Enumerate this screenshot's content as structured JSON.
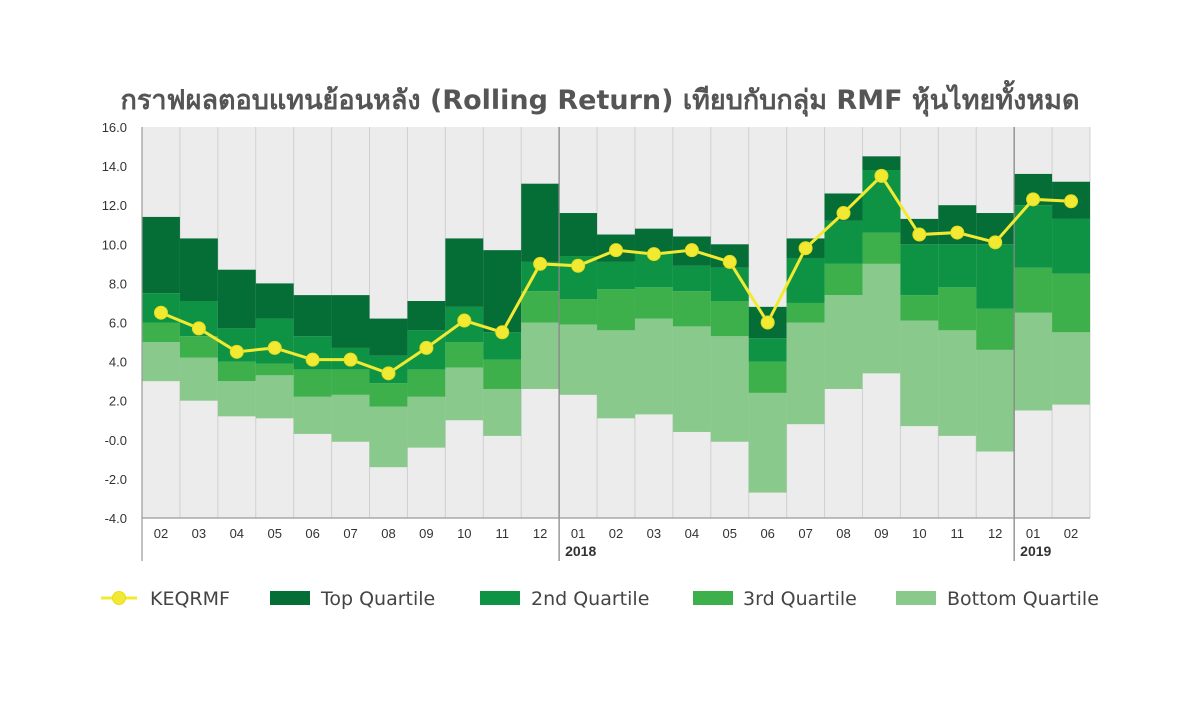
{
  "chart_data": {
    "type": "bar",
    "title": "กราฟผลตอบแทนย้อนหลัง (Rolling Return) เทียบกับกลุ่ม RMF หุ้นไทยทั้งหมด",
    "ylim": [
      -4.0,
      16.0
    ],
    "yticks": [
      "16.0",
      "14.0",
      "12.0",
      "10.0",
      "8.0",
      "6.0",
      "4.0",
      "2.0",
      "-0.0",
      "-2.0",
      "-4.0"
    ],
    "yticks_values": [
      16,
      14,
      12,
      10,
      8,
      6,
      4,
      2,
      0,
      -2,
      -4
    ],
    "categories": [
      "02",
      "03",
      "04",
      "05",
      "06",
      "07",
      "08",
      "09",
      "10",
      "11",
      "12",
      "01",
      "02",
      "03",
      "04",
      "05",
      "06",
      "07",
      "08",
      "09",
      "10",
      "11",
      "12",
      "01",
      "02"
    ],
    "year_labels": [
      {
        "index": 11,
        "label": "2018"
      },
      {
        "index": 23,
        "label": "2019"
      }
    ],
    "grid": "vertical",
    "legend_position": "bottom",
    "band_boundaries": {
      "bottom": [
        3.0,
        2.0,
        1.2,
        1.1,
        0.3,
        -0.1,
        -1.4,
        -0.4,
        1.0,
        0.2,
        2.6,
        2.3,
        1.1,
        1.3,
        0.4,
        -0.1,
        -2.7,
        0.8,
        2.6,
        3.4,
        0.7,
        0.2,
        -0.6,
        1.5,
        1.8
      ],
      "q3_start": [
        5.0,
        4.2,
        3.0,
        3.3,
        2.2,
        2.3,
        1.7,
        2.2,
        3.7,
        2.6,
        6.0,
        5.9,
        5.6,
        6.2,
        5.8,
        5.3,
        2.4,
        6.0,
        7.4,
        9.0,
        6.1,
        5.6,
        4.6,
        6.5,
        5.5
      ],
      "q2_start": [
        6.0,
        5.3,
        4.0,
        3.9,
        3.6,
        3.6,
        2.9,
        3.6,
        5.0,
        4.1,
        7.6,
        7.2,
        7.7,
        7.8,
        7.6,
        7.1,
        4.0,
        7.0,
        9.0,
        10.6,
        7.4,
        7.8,
        6.7,
        8.8,
        8.5
      ],
      "top_start": [
        7.5,
        7.1,
        5.7,
        6.2,
        5.3,
        4.7,
        4.3,
        5.6,
        6.8,
        5.5,
        9.1,
        9.4,
        9.1,
        9.6,
        8.9,
        8.8,
        5.2,
        9.3,
        11.2,
        13.8,
        10.0,
        10.0,
        10.0,
        12.0,
        11.3
      ],
      "top_end": [
        11.4,
        10.3,
        8.7,
        8.0,
        7.4,
        7.4,
        6.2,
        7.1,
        10.3,
        9.7,
        13.1,
        11.6,
        10.5,
        10.8,
        10.4,
        10.0,
        6.8,
        10.3,
        12.6,
        14.5,
        11.3,
        12.0,
        11.6,
        13.6,
        13.2
      ]
    },
    "series": [
      {
        "name": "KEQRMF",
        "values": [
          6.5,
          5.7,
          4.5,
          4.7,
          4.1,
          4.1,
          3.4,
          4.7,
          6.1,
          5.5,
          9.0,
          8.9,
          9.7,
          9.5,
          9.7,
          9.1,
          6.0,
          9.8,
          11.6,
          13.5,
          10.5,
          10.6,
          10.1,
          12.3,
          12.2
        ]
      }
    ],
    "legend": [
      {
        "key": "keqrmf",
        "label": "KEQRMF"
      },
      {
        "key": "top",
        "label": "Top Quartile"
      },
      {
        "key": "q2",
        "label": "2nd Quartile"
      },
      {
        "key": "q3",
        "label": "3rd Quartile"
      },
      {
        "key": "bottom",
        "label": "Bottom Quartile"
      }
    ],
    "colors": {
      "top": "#056d36",
      "q2": "#0e9344",
      "q3": "#3db04b",
      "bottom": "#8ac98c",
      "line": "#f2ea32",
      "marker_edge": "#e6dc1e",
      "grid": "#d0d0d0",
      "plot_bg": "#ececec",
      "separator": "#888888"
    }
  }
}
